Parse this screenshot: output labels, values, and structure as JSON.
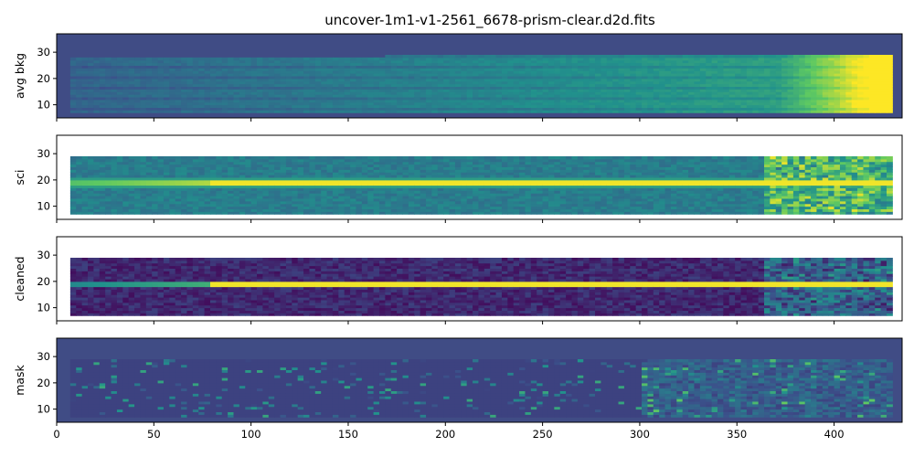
{
  "chart_data": {
    "type": "heatmap",
    "title": "uncover-1m1-v1-2561_6678-prism-clear.d2d.fits",
    "xlim": [
      0,
      435
    ],
    "ylim": [
      5,
      37
    ],
    "x_ticks": [
      0,
      50,
      100,
      150,
      200,
      250,
      300,
      350,
      400
    ],
    "y_ticks": [
      10,
      20,
      30
    ],
    "shared_x": true,
    "colormap": [
      "#440154",
      "#3b528b",
      "#21918c",
      "#5ec962",
      "#fde725"
    ],
    "panels": [
      {
        "ylabel": "avg bkg",
        "features": {
          "background_fill": "#404c85",
          "gradient": "increasing with x, saturating near x 380-430"
        }
      },
      {
        "ylabel": "sci",
        "features": {
          "trace_row": 18.5,
          "trace_bright_from_x": 78
        }
      },
      {
        "ylabel": "cleaned",
        "features": {
          "trace_row": 18.5,
          "trace_bright_from_x": 78
        }
      },
      {
        "ylabel": "mask",
        "features": {
          "background_fill": "#404c85"
        }
      }
    ]
  }
}
